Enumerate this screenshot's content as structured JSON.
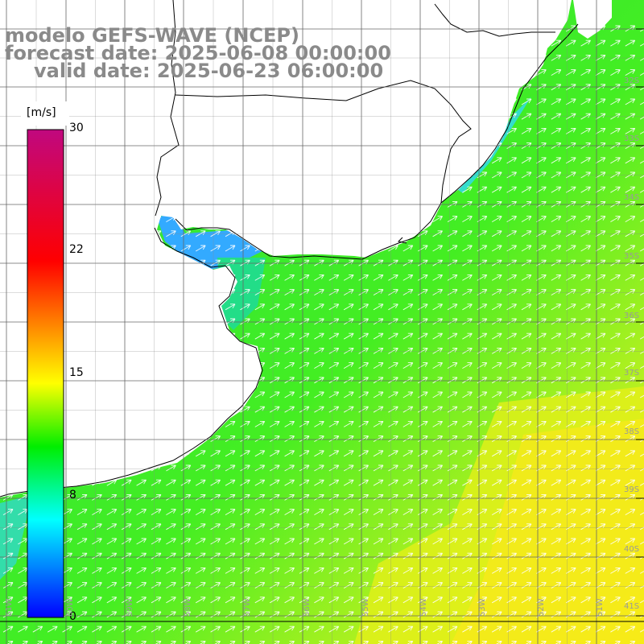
{
  "header": {
    "line1": "modelo GEFS-WAVE (NCEP)",
    "line2": "forecast date: 2025-06-08 00:00:00",
    "line3": "valid date: 2025-06-23 06:00:00"
  },
  "colorbar": {
    "unit": "[m/s]",
    "ticks": [
      "30",
      "22",
      "15",
      "8",
      "0"
    ],
    "colors": [
      "#c0087f",
      "#ff0000",
      "#ff9900",
      "#ffff00",
      "#00ee00",
      "#00ffff",
      "#0066ff",
      "#0000ff"
    ]
  },
  "lat_labels": [
    "32S",
    "33S",
    "34S",
    "35S",
    "36S",
    "37S",
    "38S",
    "39S",
    "40S",
    "41S"
  ],
  "lon_labels": [
    "61W",
    "60W",
    "59W",
    "58W",
    "57W",
    "56W",
    "55W",
    "54W",
    "53W",
    "52W",
    "51W"
  ],
  "field": {
    "variable": "wind speed",
    "arrows": "white direction vectors pointing north-east",
    "colors": {
      "land": "#ffffff",
      "coast": "#000000",
      "grid": "#555555"
    }
  }
}
